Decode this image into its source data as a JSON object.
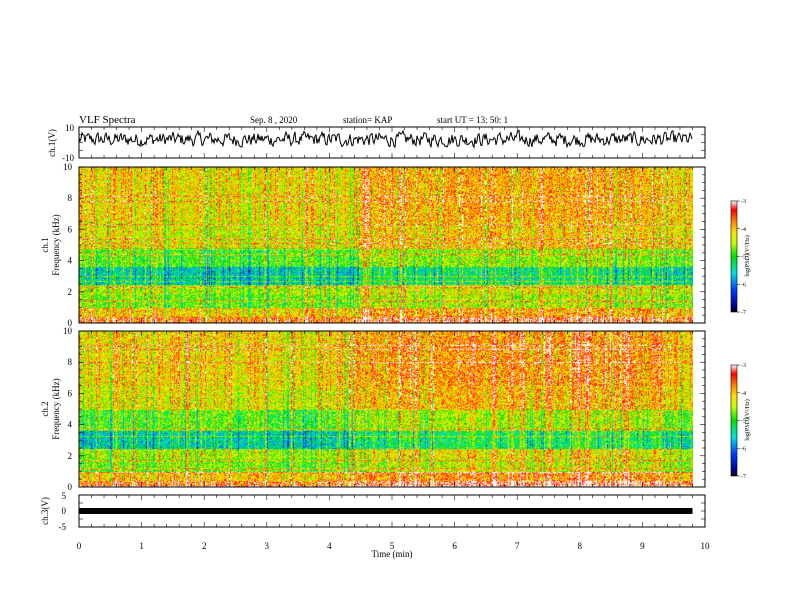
{
  "header": {
    "title": "VLF Spectra",
    "date": "Sep. 8 , 2020",
    "station": "station= KAP",
    "start": "start UT = 13: 50: 1"
  },
  "chart_data": [
    {
      "type": "line",
      "ylabel": "ch.1(V)",
      "ylim": [
        -10,
        10
      ],
      "yticks": [
        "10",
        "-10"
      ],
      "xlim": [
        0,
        10
      ],
      "description_values": {
        "baseline": 2,
        "fluctuation_range": [
          -3,
          8
        ]
      }
    },
    {
      "type": "heatmap",
      "ylabel": [
        "ch.1",
        "Frequency (kHz)"
      ],
      "ylim": [
        0,
        10
      ],
      "yticks": [
        "0",
        "2",
        "4",
        "6",
        "8",
        "10"
      ],
      "xlim": [
        0,
        10
      ],
      "colorbar": {
        "label": "log(PSD)(V²/Hz)",
        "range": [
          -7,
          -3
        ],
        "ticks": [
          "-3",
          "-4",
          "-5",
          "-6",
          "-7"
        ]
      }
    },
    {
      "type": "heatmap",
      "ylabel": [
        "ch.2",
        "Frequency (kHz)"
      ],
      "ylim": [
        0,
        10
      ],
      "yticks": [
        "0",
        "2",
        "4",
        "6",
        "8",
        "10"
      ],
      "xlim": [
        0,
        10
      ],
      "colorbar": {
        "label": "log(PSD)(V²/Hz)",
        "range": [
          -7,
          -3
        ],
        "ticks": [
          "-3",
          "-4",
          "-5",
          "-6",
          "-7"
        ]
      }
    },
    {
      "type": "line",
      "ylabel": "ch.3(V)",
      "ylim": [
        -5,
        5
      ],
      "yticks": [
        "5",
        "0",
        "-5"
      ],
      "xlim": [
        0,
        10
      ],
      "value": 0
    }
  ],
  "xaxis": {
    "label": "Time (min)",
    "ticks": [
      "0",
      "1",
      "2",
      "3",
      "4",
      "5",
      "6",
      "7",
      "8",
      "9",
      "10"
    ],
    "data_end": 9.8
  },
  "colors": {
    "trace": "#000000",
    "background": "#ffffff"
  }
}
